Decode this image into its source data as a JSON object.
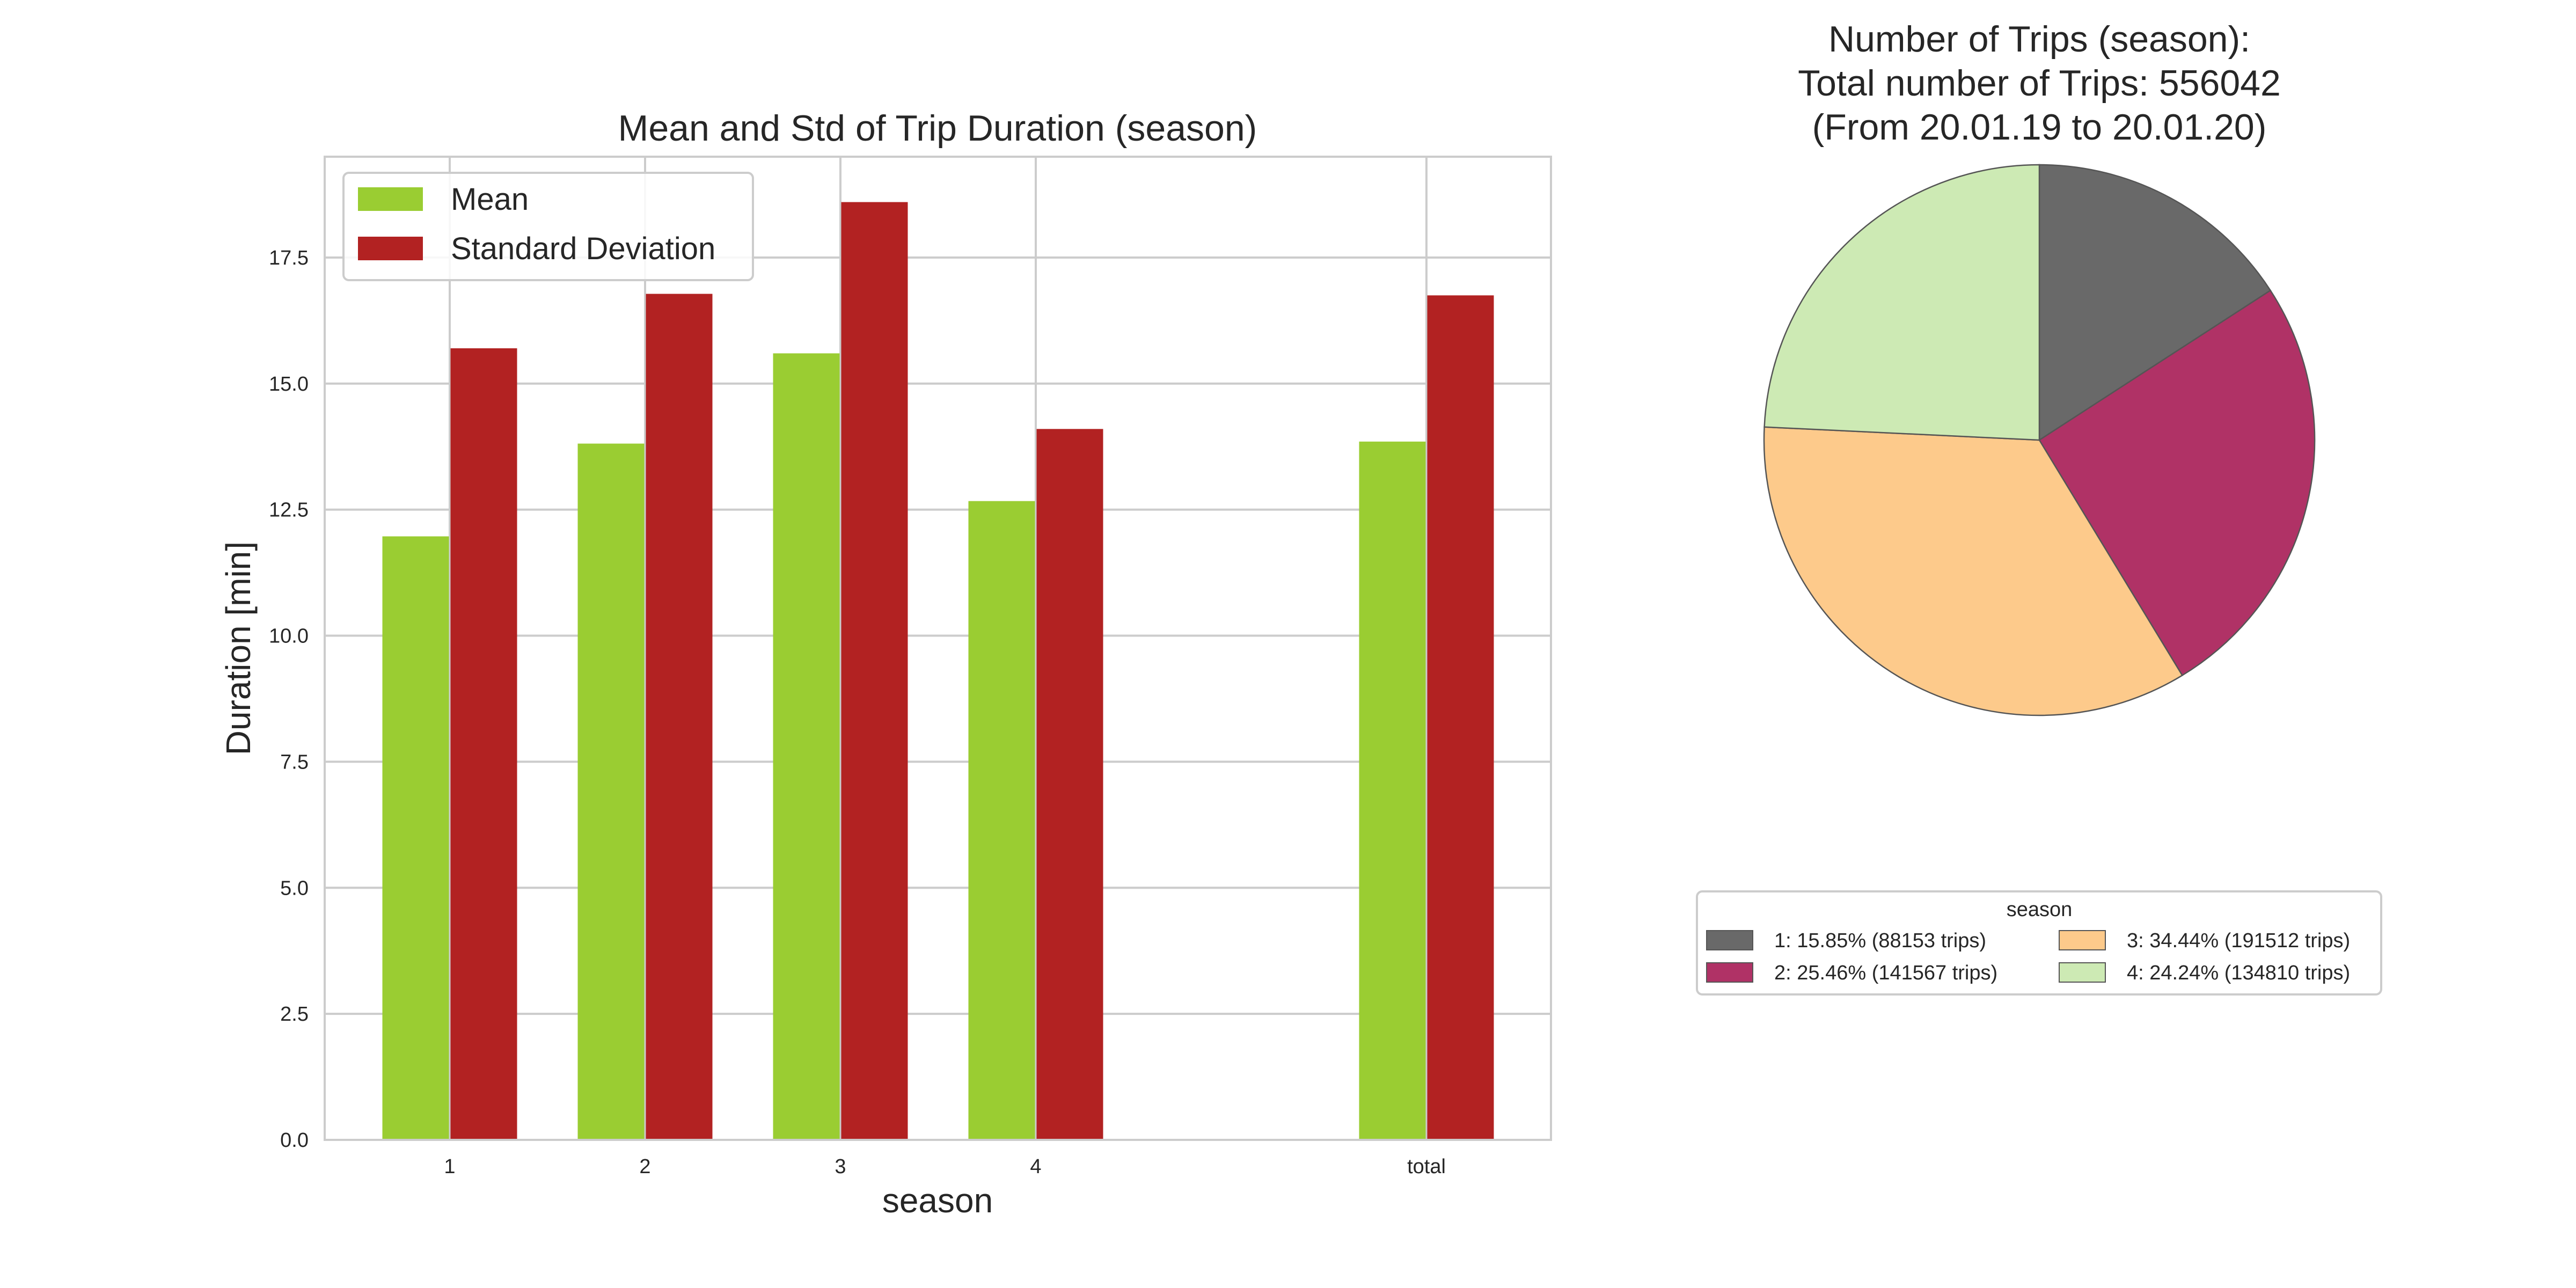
{
  "chart_data": [
    {
      "type": "bar",
      "title": "Mean and Std of Trip Duration (season)",
      "xlabel": "season",
      "ylabel": "Duration [min]",
      "categories": [
        "1",
        "2",
        "3",
        "4",
        "total"
      ],
      "series": [
        {
          "name": "Mean",
          "values": [
            11.97,
            13.81,
            15.6,
            12.67,
            13.85
          ],
          "color": "#9acd32"
        },
        {
          "name": "Standard Deviation",
          "values": [
            15.7,
            16.78,
            18.6,
            14.1,
            16.75
          ],
          "color": "#b22222"
        }
      ],
      "ylim": [
        0,
        19.5
      ],
      "yticks": [
        "0.0",
        "2.5",
        "5.0",
        "7.5",
        "10.0",
        "12.5",
        "15.0",
        "17.5"
      ],
      "ytick_values": [
        0,
        2.5,
        5,
        7.5,
        10,
        12.5,
        15,
        17.5
      ],
      "grid": true,
      "legend_position": "upper-left"
    },
    {
      "type": "pie",
      "title_lines": [
        "Number of Trips (season):",
        "Total number of Trips: 556042",
        "(From 20.01.19 to 20.01.20)"
      ],
      "legend_title": "season",
      "legend_position": "below",
      "slices": [
        {
          "label": "1: 15.85% (88153 trips)",
          "value": 88153,
          "color": "#696969"
        },
        {
          "label": "2: 25.46% (141567 trips)",
          "value": 141567,
          "color": "#b03266"
        },
        {
          "label": "3: 34.44% (191512 trips)",
          "value": 191512,
          "color": "#fdca8b"
        },
        {
          "label": "4: 24.24% (134810 trips)",
          "value": 134810,
          "color": "#cdeab4"
        }
      ]
    }
  ]
}
